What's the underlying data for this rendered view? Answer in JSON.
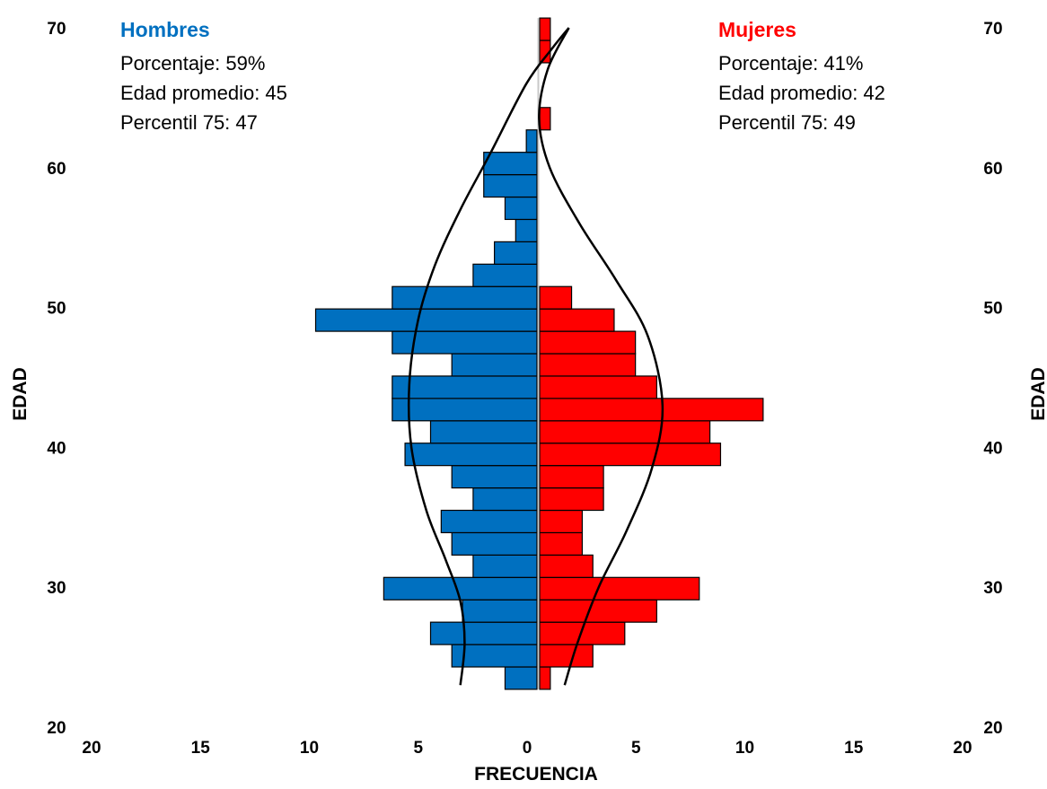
{
  "chart_data": {
    "type": "bar",
    "orientation": "horizontal",
    "title": "",
    "xlabel": "FRECUENCIA",
    "ylabel_left": "EDAD",
    "ylabel_right": "EDAD",
    "xlim": [
      -20,
      20
    ],
    "ylim": [
      20,
      70
    ],
    "x_ticks": [
      "20",
      "15",
      "10",
      "5",
      "0",
      "5",
      "10",
      "15",
      "20"
    ],
    "y_ticks": [
      "20",
      "30",
      "40",
      "50",
      "60",
      "70"
    ],
    "bin_ages": [
      23.5,
      25.1,
      26.7,
      28.3,
      29.9,
      31.5,
      33.1,
      34.7,
      36.3,
      37.9,
      39.5,
      41.1,
      42.7,
      44.3,
      45.9,
      47.5,
      49.1,
      50.7,
      52.3,
      53.9,
      55.5,
      57.1,
      58.7,
      60.3,
      61.9,
      63.5,
      65.1,
      66.7,
      68.3,
      69.9
    ],
    "series": [
      {
        "name": "Hombres",
        "color": "#0070C0",
        "values": [
          1.5,
          4,
          5,
          3.5,
          7.2,
          3,
          4,
          4.5,
          3,
          4,
          6.2,
          5,
          6.8,
          6.8,
          4,
          6.8,
          10.4,
          6.8,
          3,
          2,
          1,
          1.5,
          2.5,
          2.5,
          0.5,
          0,
          0,
          0,
          0,
          0
        ],
        "fit_curve": [
          [
            3.6,
            23.0
          ],
          [
            3.4,
            26.0
          ],
          [
            3.6,
            29.0
          ],
          [
            4.3,
            32.0
          ],
          [
            5.2,
            35.5
          ],
          [
            5.9,
            40.0
          ],
          [
            6.0,
            44.5
          ],
          [
            5.6,
            49.0
          ],
          [
            4.8,
            53.0
          ],
          [
            3.6,
            57.0
          ],
          [
            2.2,
            61.0
          ],
          [
            0.5,
            66.0
          ],
          [
            -0.7,
            68.5
          ],
          [
            -1.5,
            70.0
          ]
        ]
      },
      {
        "name": "Mujeres",
        "color": "#FF0000",
        "values": [
          0.5,
          2.5,
          4,
          5.5,
          7.5,
          2.5,
          2,
          2,
          3,
          3,
          8.5,
          8,
          10.5,
          5.5,
          4.5,
          4.5,
          3.5,
          1.5,
          0,
          0,
          0,
          0,
          0,
          0,
          0,
          0.5,
          0,
          0,
          0.5,
          0.5
        ],
        "fit_curve": [
          [
            1.3,
            23.0
          ],
          [
            1.9,
            26.0
          ],
          [
            2.9,
            30.0
          ],
          [
            4.2,
            34.0
          ],
          [
            5.4,
            38.5
          ],
          [
            5.9,
            43.0
          ],
          [
            5.2,
            48.0
          ],
          [
            3.7,
            52.0
          ],
          [
            2.0,
            56.0
          ],
          [
            0.6,
            60.0
          ],
          [
            0.1,
            63.5
          ],
          [
            0.5,
            67.0
          ],
          [
            1.5,
            70.0
          ]
        ]
      }
    ],
    "annotations": {
      "men": {
        "heading": "Hombres",
        "lines": [
          "Porcentaje: 59%",
          "Edad promedio: 45",
          "Percentil 75: 47"
        ]
      },
      "women": {
        "heading": "Mujeres",
        "lines": [
          "Porcentaje: 41%",
          "Edad promedio: 42",
          "Percentil 75: 49"
        ]
      }
    },
    "grid": false,
    "legend": "none"
  }
}
